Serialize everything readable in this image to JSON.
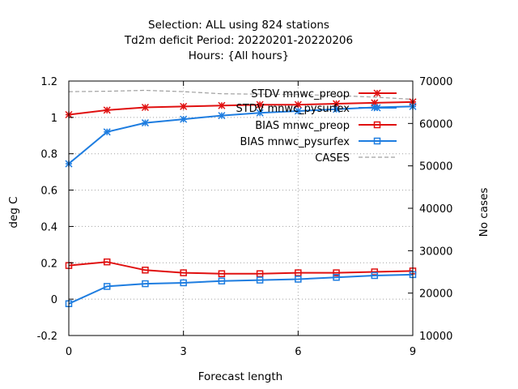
{
  "chart_data": {
    "type": "line",
    "title_lines": [
      "Selection: ALL using   824 stations",
      "Td2m deficit   Period: 20220201-20220206",
      "Hours: {All hours}"
    ],
    "xlabel": "Forecast length",
    "ylabel": "deg C",
    "y2label": "No cases",
    "xlim": [
      0,
      9
    ],
    "ylim": [
      -0.2,
      1.2
    ],
    "y2lim": [
      10000,
      70000
    ],
    "xticks": [
      0,
      3,
      6,
      9
    ],
    "yticks": [
      -0.2,
      0,
      0.2,
      0.4,
      0.6,
      0.8,
      1,
      1.2
    ],
    "y2ticks": [
      10000,
      20000,
      30000,
      40000,
      50000,
      60000,
      70000
    ],
    "grid": true,
    "legend_position": "top-right",
    "x": [
      0,
      1,
      2,
      3,
      4,
      5,
      6,
      7,
      8,
      9
    ],
    "series": [
      {
        "name": "STDV mnwc_preop",
        "axis": "y1",
        "marker": "star",
        "color": "#e01010",
        "values": [
          1.015,
          1.04,
          1.055,
          1.06,
          1.065,
          1.07,
          1.07,
          1.075,
          1.08,
          1.085
        ]
      },
      {
        "name": "STDV mnwc_pysurfex",
        "axis": "y1",
        "marker": "star",
        "color": "#1e7de0",
        "values": [
          0.745,
          0.92,
          0.97,
          0.99,
          1.01,
          1.025,
          1.035,
          1.045,
          1.055,
          1.06
        ]
      },
      {
        "name": "BIAS mnwc_preop",
        "axis": "y1",
        "marker": "square",
        "color": "#e01010",
        "values": [
          0.185,
          0.205,
          0.16,
          0.145,
          0.14,
          0.14,
          0.145,
          0.145,
          0.15,
          0.155
        ]
      },
      {
        "name": "BIAS mnwc_pysurfex",
        "axis": "y1",
        "marker": "square",
        "color": "#1e7de0",
        "values": [
          -0.025,
          0.07,
          0.085,
          0.09,
          0.1,
          0.105,
          0.11,
          0.12,
          0.13,
          0.135
        ]
      },
      {
        "name": "CASES",
        "axis": "y2",
        "marker": "none",
        "color": "#a0a0a0",
        "dashed": true,
        "values": [
          67500,
          67600,
          67800,
          67500,
          67000,
          66900,
          66800,
          66600,
          66200,
          65700
        ]
      }
    ]
  }
}
